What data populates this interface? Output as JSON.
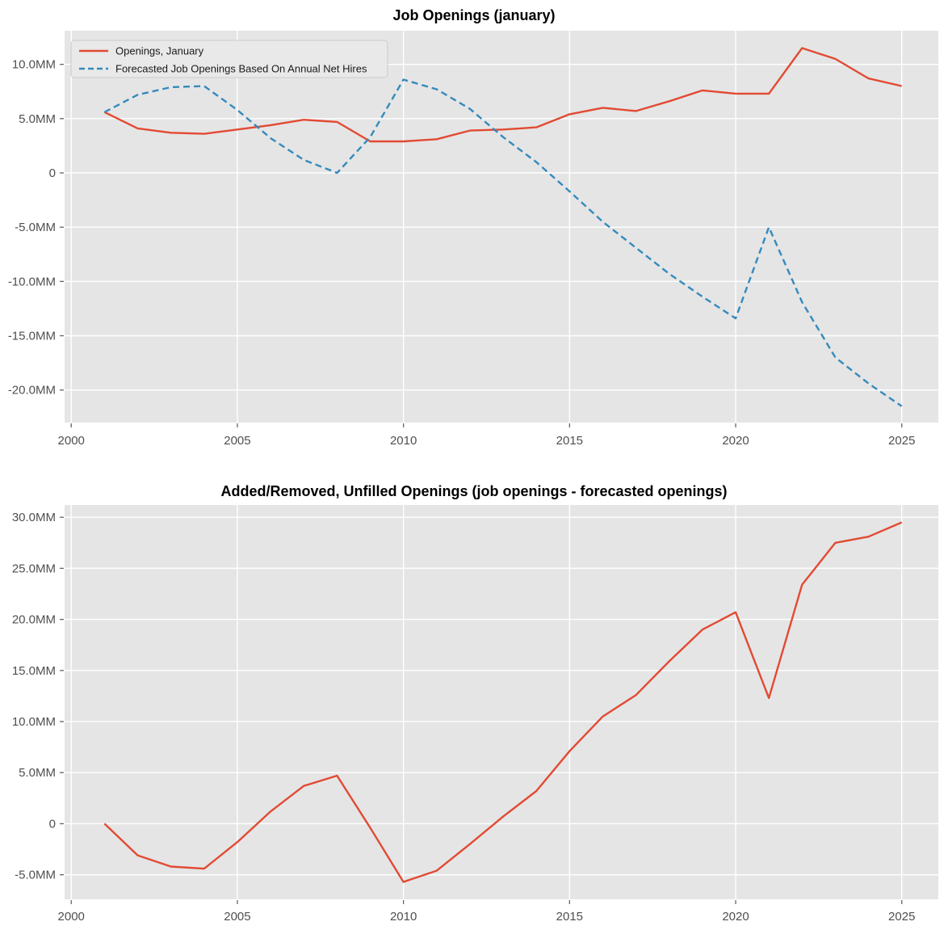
{
  "colors": {
    "figure_background": "#ffffff",
    "plot_background": "#e5e5e5",
    "grid": "#ffffff",
    "tick": "#666666",
    "tick_label": "#4f4f4f",
    "openings_line": "#e24a33",
    "forecast_line": "#348abd",
    "legend_background": "#e9e9e9",
    "legend_border": "#cccccc"
  },
  "chart_data": [
    {
      "type": "line",
      "title": "Job Openings (january)",
      "xlabel": "",
      "ylabel": "",
      "grid": true,
      "xlim": [
        1999.8,
        2026.1
      ],
      "ylim": [
        -23.0,
        13.1
      ],
      "x_ticks": [
        {
          "value": 2000,
          "label": "2000"
        },
        {
          "value": 2005,
          "label": "2005"
        },
        {
          "value": 2010,
          "label": "2010"
        },
        {
          "value": 2015,
          "label": "2015"
        },
        {
          "value": 2020,
          "label": "2020"
        },
        {
          "value": 2025,
          "label": "2025"
        }
      ],
      "y_ticks": [
        {
          "value": 10,
          "label": "10.0MM"
        },
        {
          "value": 5,
          "label": "5.0MM"
        },
        {
          "value": 0,
          "label": "0"
        },
        {
          "value": -5,
          "label": "-5.0MM"
        },
        {
          "value": -10,
          "label": "-10.0MM"
        },
        {
          "value": -15,
          "label": "-15.0MM"
        },
        {
          "value": -20,
          "label": "-20.0MM"
        }
      ],
      "x": [
        2001,
        2002,
        2003,
        2004,
        2005,
        2006,
        2007,
        2008,
        2009,
        2010,
        2011,
        2012,
        2013,
        2014,
        2015,
        2016,
        2017,
        2018,
        2019,
        2020,
        2021,
        2022,
        2023,
        2024,
        2025
      ],
      "series": [
        {
          "name": "Openings, January",
          "color": "#e24a33",
          "style": "solid",
          "values": [
            5.6,
            4.1,
            3.7,
            3.6,
            4.0,
            4.4,
            4.9,
            4.7,
            2.9,
            2.9,
            3.1,
            3.9,
            4.0,
            4.2,
            5.4,
            6.0,
            5.7,
            6.6,
            7.6,
            7.3,
            7.3,
            11.5,
            10.5,
            8.7,
            8.0
          ]
        },
        {
          "name": "Forecasted Job Openings Based On Annual Net Hires",
          "color": "#348abd",
          "style": "dashed",
          "values": [
            5.6,
            7.2,
            7.9,
            8.0,
            5.8,
            3.2,
            1.2,
            0.0,
            3.3,
            8.6,
            7.7,
            5.9,
            3.3,
            1.0,
            -1.7,
            -4.5,
            -6.9,
            -9.3,
            -11.4,
            -13.4,
            -5.0,
            -11.9,
            -17.0,
            -19.4,
            -21.5
          ]
        }
      ],
      "legend": {
        "position": "upper left",
        "items": [
          {
            "label": "Openings, January",
            "color": "#e24a33",
            "style": "solid"
          },
          {
            "label": "Forecasted Job Openings Based On Annual Net Hires",
            "color": "#348abd",
            "style": "dashed"
          }
        ]
      }
    },
    {
      "type": "line",
      "title": "Added/Removed, Unfilled Openings (job openings - forecasted openings)",
      "xlabel": "",
      "ylabel": "",
      "grid": true,
      "xlim": [
        1999.8,
        2026.1
      ],
      "ylim": [
        -7.4,
        31.2
      ],
      "x_ticks": [
        {
          "value": 2000,
          "label": "2000"
        },
        {
          "value": 2005,
          "label": "2005"
        },
        {
          "value": 2010,
          "label": "2010"
        },
        {
          "value": 2015,
          "label": "2015"
        },
        {
          "value": 2020,
          "label": "2020"
        },
        {
          "value": 2025,
          "label": "2025"
        }
      ],
      "y_ticks": [
        {
          "value": 30,
          "label": "30.0MM"
        },
        {
          "value": 25,
          "label": "25.0MM"
        },
        {
          "value": 20,
          "label": "20.0MM"
        },
        {
          "value": 15,
          "label": "15.0MM"
        },
        {
          "value": 10,
          "label": "10.0MM"
        },
        {
          "value": 5,
          "label": "5.0MM"
        },
        {
          "value": 0,
          "label": "0"
        },
        {
          "value": -5,
          "label": "-5.0MM"
        }
      ],
      "x": [
        2001,
        2002,
        2003,
        2004,
        2005,
        2006,
        2007,
        2008,
        2009,
        2010,
        2011,
        2012,
        2013,
        2014,
        2015,
        2016,
        2017,
        2018,
        2019,
        2020,
        2021,
        2022,
        2023,
        2024,
        2025
      ],
      "series": [
        {
          "name": "job openings - forecasted openings",
          "color": "#e24a33",
          "style": "solid",
          "values": [
            0.0,
            -3.1,
            -4.2,
            -4.4,
            -1.8,
            1.2,
            3.7,
            4.7,
            -0.4,
            -5.7,
            -4.6,
            -2.0,
            0.7,
            3.2,
            7.1,
            10.5,
            12.6,
            15.9,
            19.0,
            20.7,
            12.3,
            23.4,
            27.5,
            28.1,
            29.5
          ]
        }
      ],
      "legend": null
    }
  ]
}
